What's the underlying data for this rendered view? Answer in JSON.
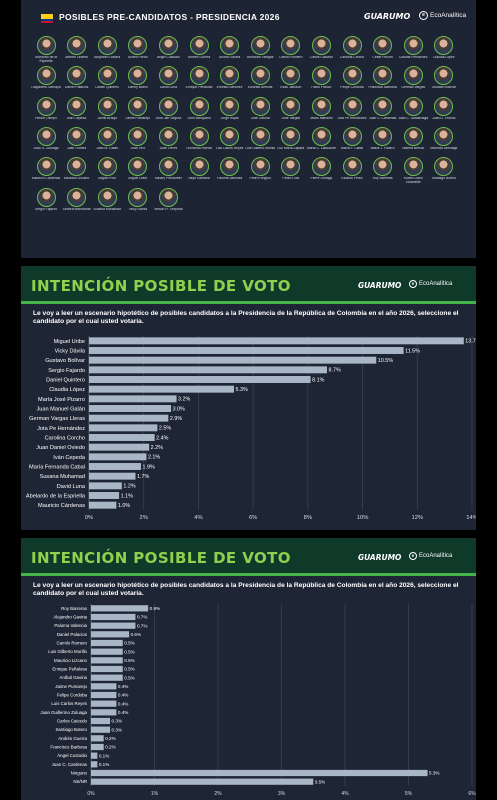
{
  "candidates_panel": {
    "title": "POSIBLES PRE-CANDIDATOS - PRESIDENCIA 2026",
    "brand_guarumo": "GUARUMO",
    "brand_eco": "EcoAnalítica",
    "candidates": [
      "Abelardo de la Espriella",
      "Alberto Linares",
      "Alejandro Gaviria",
      "Álvaro Pardo",
      "Ángel Custodio",
      "Andrés Guerra",
      "Aníbal Gaviria",
      "Armando Villegas",
      "Camilo Romero",
      "Carlos Caicedo",
      "Carolina Corcho",
      "César Pinzón",
      "Claudia Fernández",
      "Claudia López",
      "Dagoberto Samaya",
      "Daniel Palacios",
      "Daniel Quintero",
      "Danny Bravo",
      "David Luna",
      "Enrique Peñalosa",
      "Ernesto Sánchez",
      "Eusebio Arenilla",
      "Esau Jackson",
      "Fabio Franco",
      "Felipe Córdoba",
      "Francisco Barbosa",
      "German Vargas",
      "Gustavo Bolívar",
      "Héctor Olimpo",
      "Iván Cepeda",
      "Jaime Araujo",
      "Jaime Pumarejo",
      "Jhon Jair Segura",
      "John Mosquera",
      "Jorge Rojas",
      "José Gaviria",
      "José Vargas",
      "Jesús Martínez",
      "Jota Pe Hernández",
      "Juan C. Cárdenas",
      "Juan C. Saldarriaga",
      "Juan D. Oviedo",
      "Juan G. Zuluaga",
      "Juan Gómez",
      "Juan M. Galán",
      "Juan Toro",
      "Juan Torres",
      "Leonardo Huerta",
      "Luis Carlos Reyes",
      "Luis Gilberto Murillo",
      "Luz María Zapata",
      "María C. Lacouture",
      "María F. Cabal",
      "María J. Pizarro",
      "Martha Bernal",
      "Mauricio Armitage",
      "Mauricio Cárdenas",
      "Mauricio Lizcano",
      "Miguel Polo",
      "Miguel Uribe",
      "Mihary Pendorffer",
      "Neys Santana",
      "Paloma Valencia",
      "Pedro Helguin",
      "Pedro Díaz",
      "Pierre Onzaga",
      "Ricardo Pérez",
      "Roy Barreras",
      "Rubén Darío Lizarralde",
      "Santiago Botero",
      "Sergio Fajardo",
      "Sandra Marulanda",
      "Susana Muhamad",
      "Vicky Dávila",
      "Wilson R. Orejuela"
    ]
  },
  "chart1": {
    "band_title": "INTENCIÓN POSIBLE DE VOTO",
    "brand_guarumo": "GUARUMO",
    "brand_eco": "EcoAnalítica",
    "question": "Le voy a leer un escenario hipotético de posibles candidatos a la Presidencia de la República de Colombia en el año 2026, seleccione el candidato por el cual usted votaría.",
    "bar_color": "#a9b6c6",
    "grid_color": "#3a4254"
  },
  "chart2": {
    "band_title": "INTENCIÓN POSIBLE DE VOTO",
    "brand_guarumo": "GUARUMO",
    "brand_eco": "EcoAnalítica",
    "question": "Le voy a leer un escenario hipotético de posibles candidatos a la Presidencia de la República de Colombia en el año 2026, seleccione el candidato por el cual usted votaría.",
    "bar_color": "#a9b6c6",
    "grid_color": "#3a4254"
  },
  "chart_data": [
    {
      "type": "bar",
      "orientation": "horizontal",
      "title": "INTENCIÓN POSIBLE DE VOTO",
      "categories": [
        "Miguel Uribe",
        "Vicky Dávila",
        "Gustavo Bolívar",
        "Sergio Fajardo",
        "Daniel Quintero",
        "Claudia López",
        "María José Pizarro",
        "Juan Manuel Galán",
        "German Vargas Lleras",
        "Jota Pe Hernández",
        "Carolina Corcho",
        "Juan Daniel Oviedo",
        "Iván Cepeda",
        "María Fernanda Cabal",
        "Susana Muhamad",
        "David Luna",
        "Abelardo de la Espriella",
        "Mauricio Cárdenas"
      ],
      "values": [
        13.7,
        11.5,
        10.5,
        8.7,
        8.1,
        5.3,
        3.2,
        3.0,
        2.9,
        2.5,
        2.4,
        2.2,
        2.1,
        1.9,
        1.7,
        1.2,
        1.1,
        1.0
      ],
      "value_labels": [
        "13.7%",
        "11.5%",
        "10.5%",
        "8.7%",
        "8.1%",
        "5.3%",
        "3.2%",
        "3.0%",
        "2.9%",
        "2.5%",
        "2.4%",
        "2.2%",
        "2.1%",
        "1.9%",
        "1.7%",
        "1.2%",
        "1.1%",
        "1.0%"
      ],
      "xlim": [
        0,
        14
      ],
      "ticks": [
        0,
        2,
        4,
        6,
        8,
        10,
        12,
        14
      ],
      "tick_labels": [
        "0%",
        "2%",
        "4%",
        "6%",
        "8%",
        "10%",
        "12%",
        "14%"
      ],
      "grid": true
    },
    {
      "type": "bar",
      "orientation": "horizontal",
      "title": "INTENCIÓN POSIBLE DE VOTO",
      "categories": [
        "Roy Barreras",
        "Alejandro Gaviria",
        "Paloma Valencia",
        "Daniel Palacios",
        "Camilo Romero",
        "Luis Gilberto Murillo",
        "Mauricio Lizcano",
        "Enrique Peñalosa",
        "Aníbal Gaviria",
        "Jaime Pumarejo",
        "Felipe Cordoba",
        "Luis Carlos Reyes",
        "Juan Guillermo Zuluaga",
        "Carlos Caicedo",
        "Santiago Botero",
        "Andrés Guerra",
        "Francisco Barbosa",
        "Ángel Custodio",
        "Juan C. Cardenas",
        "Ninguno",
        "NS/NR"
      ],
      "values": [
        0.9,
        0.7,
        0.7,
        0.6,
        0.5,
        0.5,
        0.5,
        0.5,
        0.5,
        0.4,
        0.4,
        0.4,
        0.4,
        0.3,
        0.3,
        0.2,
        0.2,
        0.1,
        0.1,
        5.3,
        3.5
      ],
      "value_labels": [
        "0.9%",
        "0.7%",
        "0.7%",
        "0.6%",
        "0.5%",
        "0.5%",
        "0.5%",
        "0.5%",
        "0.5%",
        "0.4%",
        "0.4%",
        "0.4%",
        "0.4%",
        "0.3%",
        "0.3%",
        "0.2%",
        "0.2%",
        "0.1%",
        "0.1%",
        "5.3%",
        "3.5%"
      ],
      "xlim": [
        0,
        6
      ],
      "ticks": [
        0,
        1,
        2,
        3,
        4,
        5,
        6
      ],
      "tick_labels": [
        "0%",
        "1%",
        "2%",
        "3%",
        "4%",
        "5%",
        "6%"
      ],
      "grid": true
    }
  ]
}
